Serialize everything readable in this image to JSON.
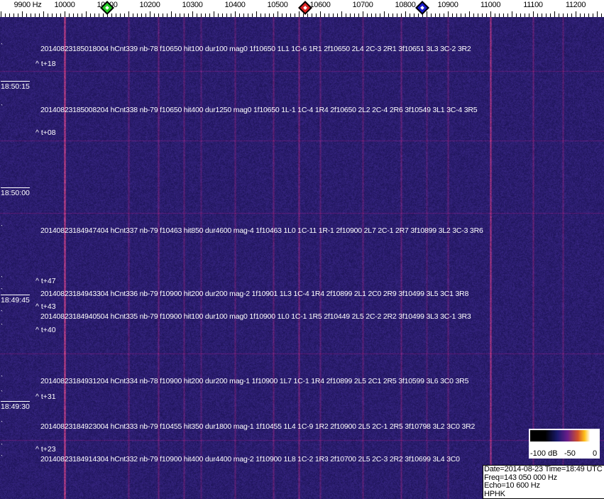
{
  "axis": {
    "unit_label": "9900 Hz",
    "labels": [
      "10000",
      "10100",
      "10200",
      "10300",
      "10400",
      "10500",
      "10600",
      "10700",
      "10800",
      "10900",
      "11000",
      "11100",
      "11200"
    ]
  },
  "markers": [
    {
      "name": "green-marker",
      "freq_hz": 10100,
      "color": "#22cc22"
    },
    {
      "name": "red-marker",
      "freq_hz": 10565,
      "color": "#dd2222"
    },
    {
      "name": "blue-marker",
      "freq_hz": 10840,
      "color": "#1a1acc"
    }
  ],
  "colors": {
    "background": "#241a63",
    "strong_line": "#e0703a",
    "text": "#ffffff"
  },
  "events": [
    "20140823185018004 hCnt339 nb-78 f10650 hit100 dur100 mag0 1f10650 1L1 1C-6 1R1 2f10650 2L4 2C-3 2R1 3f10651 3L3 3C-2 3R2",
    "20140823185008204 hCnt338 nb-79 f10650 hit400 dur1250 mag0 1f10650 1L-1 1C-4 1R4 2f10650 2L2 2C-4 2R6 3f10549 3L1 3C-4 3R5",
    "20140823184947404 hCnt337 nb-79 f10463 hit850 dur4600 mag-4 1f10463 1L0 1C-11 1R-1 2f10900 2L7 2C-1 2R7 3f10899 3L2 3C-3 3R6",
    "20140823184943304 hCnt336 nb-79 f10900 hit200 dur200 mag-2 1f10901 1L3 1C-4 1R4 2f10899 2L1 2C0 2R9 3f10499 3L5 3C1 3R8",
    "20140823184940504 hCnt335 nb-79 f10900 hit100 dur100 mag0 1f10900 1L0 1C-1 1R5 2f10449 2L5 2C-2 2R2 3f10499 3L3 3C-1 3R3",
    "20140823184931204 hCnt334 nb-78 f10900 hit200 dur200 mag-1 1f10900 1L7 1C-1 1R4 2f10899 2L5 2C1 2R5 3f10599 3L6 3C0 3R5",
    "20140823184923004 hCnt333 nb-79 f10455 hit350 dur1800 mag-1 1f10455 1L4 1C-9 1R2 2f10900 2L5 2C-1 2R5 3f10798 3L2 3C0 3R2",
    "20140823184914304 hCnt332 nb-79 f10900 hit400 dur4400 mag-2 1f10900 1L8 1C-2 1R3 2f10700 2L5 2C-3 2R2 3f10699 3L4 3C0"
  ],
  "time_offsets": [
    "^ t+18",
    "^ t+08",
    "^ t+47",
    "^ t+43",
    "^ t+40",
    "^ t+31",
    "^ t+23"
  ],
  "time_labels": [
    "18:50:15",
    "18:50:00",
    "18:49:45",
    "18:49:30"
  ],
  "colorbar": {
    "labels": [
      "-100 dB",
      "-50",
      "0"
    ],
    "range_db": [
      -100,
      0
    ]
  },
  "info": {
    "line1": "Date=2014-08-23 Time=18:49 UTC",
    "line2": "Freq=143 050 000 Hz",
    "line3": "Echo=10 600 Hz",
    "line4": "HPHK"
  }
}
